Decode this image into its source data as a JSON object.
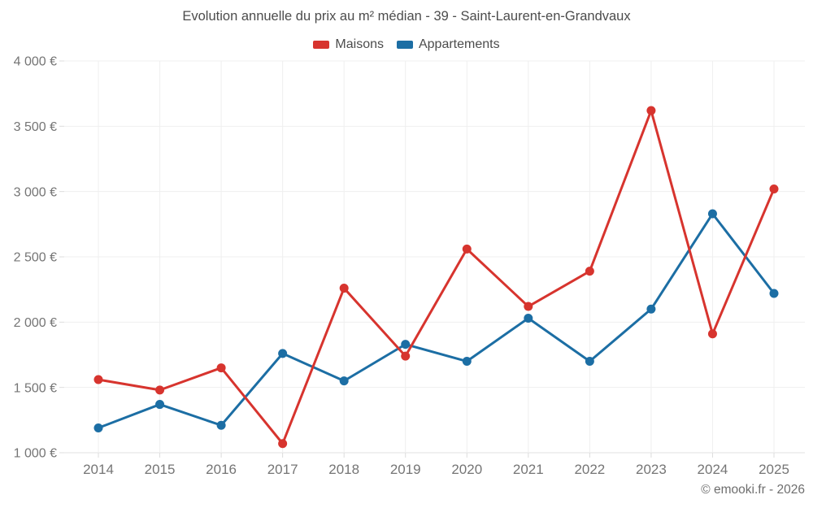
{
  "title": "Evolution annuelle du prix au m² médian - 39 - Saint-Laurent-en-Grandvaux",
  "footer": "© emooki.fr - 2026",
  "legend": {
    "items": [
      {
        "label": "Maisons",
        "color": "#d7342e"
      },
      {
        "label": "Appartements",
        "color": "#1c6ea4"
      }
    ]
  },
  "colors": {
    "maisons": "#d7342e",
    "appartements": "#1c6ea4",
    "title_text": "#4c4c4c",
    "axis_text": "#757575",
    "gridline": "#efefef",
    "background": "#ffffff"
  },
  "chart_data": {
    "type": "line",
    "title": "Evolution annuelle du prix au m² médian - 39 - Saint-Laurent-en-Grandvaux",
    "categories": [
      "2014",
      "2015",
      "2016",
      "2017",
      "2018",
      "2019",
      "2020",
      "2021",
      "2022",
      "2023",
      "2024",
      "2025"
    ],
    "series": [
      {
        "name": "Maisons",
        "color": "#d7342e",
        "values": [
          1560,
          1480,
          1650,
          1070,
          2260,
          1740,
          2560,
          2120,
          2390,
          3620,
          1910,
          3020
        ]
      },
      {
        "name": "Appartements",
        "color": "#1c6ea4",
        "values": [
          1190,
          1370,
          1210,
          1760,
          1550,
          1830,
          1700,
          2030,
          1700,
          2100,
          2830,
          2220
        ]
      }
    ],
    "xlabel": "",
    "ylabel": "",
    "ylim": [
      1000,
      4000
    ],
    "ytick_step": 500,
    "ytick_suffix": " €",
    "grid": true,
    "legend_position": "top",
    "marker_radius": 5.5
  }
}
